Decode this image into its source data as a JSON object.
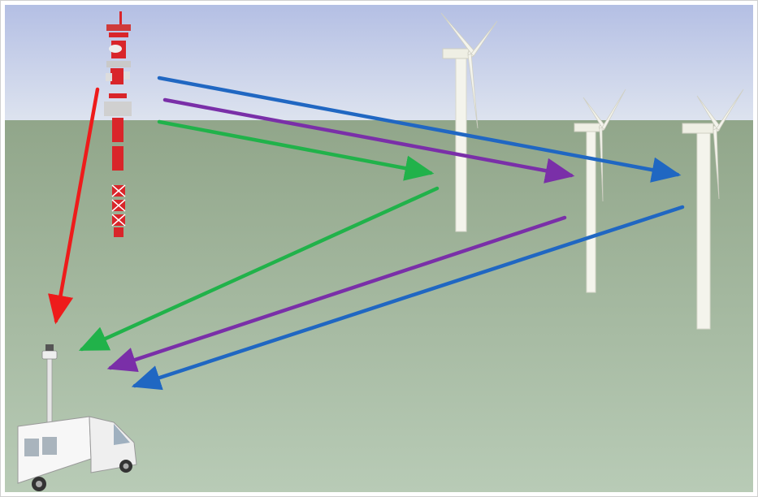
{
  "scene": {
    "objects": {
      "transmitter": "broadcast-tower",
      "receiver": "outside-broadcast-van",
      "reflectors": [
        "wind-turbine",
        "wind-turbine",
        "wind-turbine"
      ]
    },
    "colors": {
      "sky_top": "#b4bfe4",
      "sky_bottom": "#dde3ef",
      "ground_top": "#91a68a",
      "ground_bottom": "#b8cbb6",
      "direct_path": "#ee1b1b",
      "reflection_1": "#21b24a",
      "reflection_2": "#7a2fa8",
      "reflection_3": "#2067c2",
      "tower_red": "#d9252a",
      "turbine_white": "#f4f4ec"
    },
    "signal_paths": [
      {
        "id": "direct",
        "color_key": "direct_path",
        "via": "none"
      },
      {
        "id": "green",
        "color_key": "reflection_1",
        "via": "turbine-1"
      },
      {
        "id": "purple",
        "color_key": "reflection_2",
        "via": "turbine-2"
      },
      {
        "id": "blue",
        "color_key": "reflection_3",
        "via": "turbine-3"
      }
    ]
  }
}
